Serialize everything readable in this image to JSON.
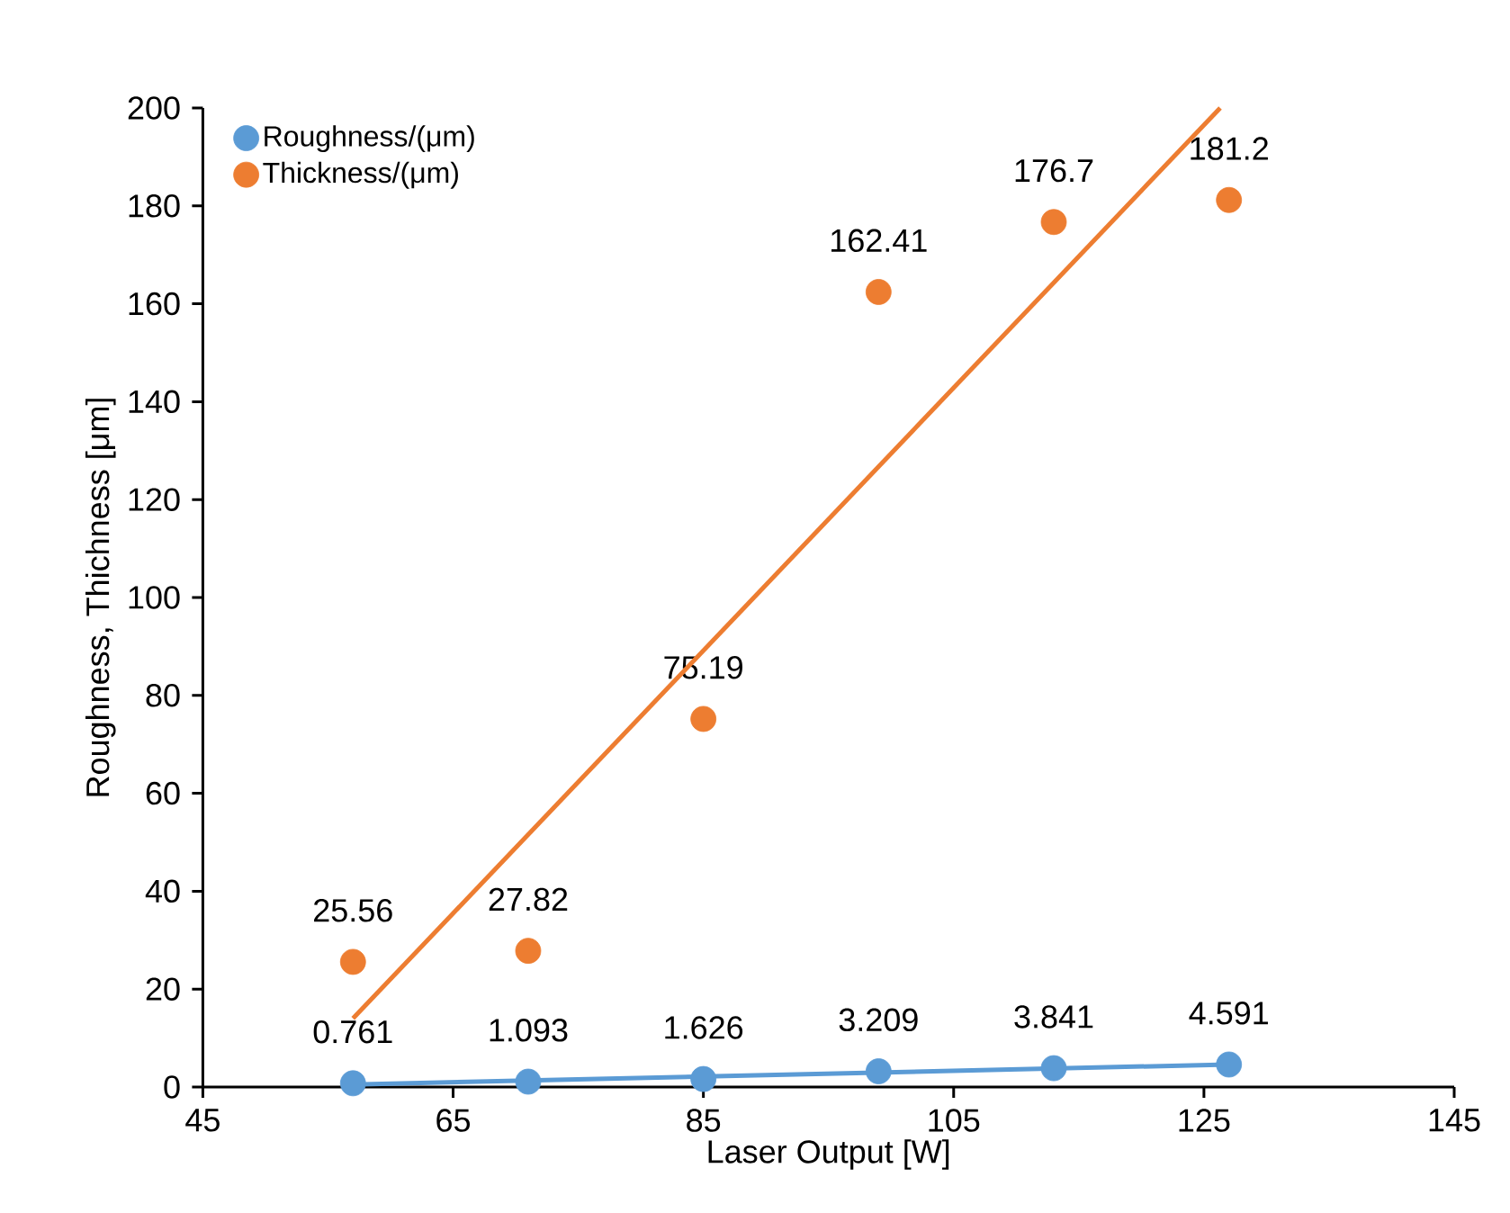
{
  "chart_data": {
    "type": "scatter",
    "xlabel": "Laser Output [W]",
    "ylabel": "Roughness, Thichness [μm]",
    "x": [
      57,
      71,
      85,
      99,
      113,
      127
    ],
    "series": [
      {
        "name": "Roughness/(μm)",
        "marker": "circle",
        "color": "#5b9bd5",
        "values": [
          0.761,
          1.093,
          1.626,
          3.209,
          3.841,
          4.591
        ],
        "value_labels": [
          "0.761",
          "1.093",
          "1.626",
          "3.209",
          "3.841",
          "4.591"
        ]
      },
      {
        "name": "Thickness/(μm)",
        "marker": "circle",
        "color": "#ed7d31",
        "values": [
          25.56,
          27.82,
          75.19,
          162.41,
          176.7,
          181.2
        ],
        "value_labels": [
          "25.56",
          "27.82",
          "75.19",
          "162.41",
          "176.7",
          "181.2"
        ]
      },
      {
        "type": "line",
        "marker": "none",
        "color": "#5b9bd5",
        "x": [
          57,
          127
        ],
        "values": [
          0.5,
          4.6
        ]
      },
      {
        "type": "line",
        "marker": "none",
        "color": "#ed7d31",
        "x": [
          57,
          126.3
        ],
        "values": [
          14,
          200
        ]
      }
    ],
    "xlim": [
      45,
      145
    ],
    "xticks": [
      45,
      65,
      85,
      105,
      125,
      145
    ],
    "ylim": [
      0,
      200
    ],
    "yticks": [
      0,
      20,
      40,
      60,
      80,
      100,
      120,
      140,
      160,
      180,
      200
    ],
    "grid": false,
    "legend": "top left"
  }
}
